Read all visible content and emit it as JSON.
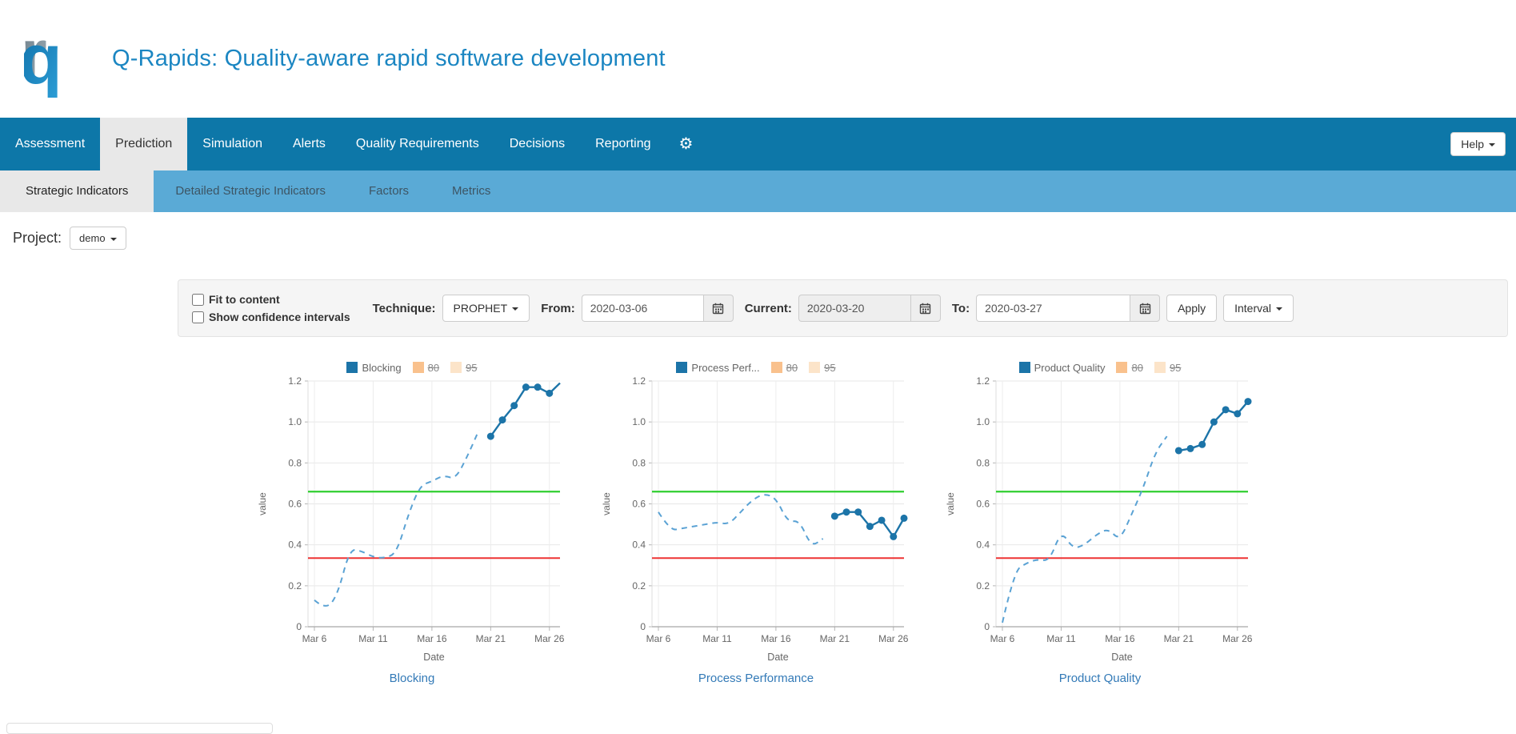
{
  "header": {
    "title": "Q-Rapids: Quality-aware rapid software development"
  },
  "navbar": {
    "items": [
      {
        "label": "Assessment",
        "active": false
      },
      {
        "label": "Prediction",
        "active": true
      },
      {
        "label": "Simulation",
        "active": false
      },
      {
        "label": "Alerts",
        "active": false
      },
      {
        "label": "Quality Requirements",
        "active": false
      },
      {
        "label": "Decisions",
        "active": false
      },
      {
        "label": "Reporting",
        "active": false
      }
    ],
    "gear_icon": "⚙",
    "help_label": "Help"
  },
  "subnav": {
    "items": [
      {
        "label": "Strategic Indicators",
        "active": true
      },
      {
        "label": "Detailed Strategic Indicators",
        "active": false
      },
      {
        "label": "Factors",
        "active": false
      },
      {
        "label": "Metrics",
        "active": false
      }
    ]
  },
  "project": {
    "label": "Project:",
    "selected": "demo"
  },
  "controls": {
    "fit_to_content": "Fit to content",
    "show_confidence": "Show confidence intervals",
    "technique_label": "Technique:",
    "technique_value": "PROPHET",
    "from_label": "From:",
    "from_value": "2020-03-06",
    "current_label": "Current:",
    "current_value": "2020-03-20",
    "to_label": "To:",
    "to_value": "2020-03-27",
    "apply_label": "Apply",
    "interval_label": "Interval"
  },
  "colors": {
    "navbar": "#0d77a8",
    "subnav": "#5aaad6",
    "active_tab": "#e8e8e8",
    "title_blue": "#1b86c2",
    "link_blue": "#337ab7",
    "series_solid": "#1c74a8",
    "series_dashed": "#5aa2d4",
    "band80": "#f9c18d",
    "band95": "#fce4c9",
    "threshold_upper_green": "#3ad13a",
    "threshold_lower_red": "#ee3333"
  },
  "chart_data": [
    {
      "type": "line",
      "title": "Blocking",
      "legend": [
        {
          "label": "Blocking",
          "color": "#1c74a8",
          "struck": false
        },
        {
          "label": "80",
          "color": "#f9c18d",
          "struck": true
        },
        {
          "label": "95",
          "color": "#fce4c9",
          "struck": true
        }
      ],
      "xlabel": "Date",
      "ylabel": "value",
      "ylim": [
        0,
        1.2
      ],
      "yticks": [
        0,
        0.2,
        0.4,
        0.6,
        0.8,
        1.0,
        1.2
      ],
      "xticks": [
        {
          "day": 0,
          "label": "Mar 6"
        },
        {
          "day": 5,
          "label": "Mar 11"
        },
        {
          "day": 10,
          "label": "Mar 16"
        },
        {
          "day": 15,
          "label": "Mar 21"
        },
        {
          "day": 20,
          "label": "Mar 26"
        }
      ],
      "x_range_days": [
        0,
        21
      ],
      "thresholds": {
        "upper": 0.66,
        "lower": 0.335
      },
      "series": [
        {
          "name": "historical",
          "style": "dashed",
          "color": "#5aa2d4",
          "dates": [
            "Mar 6",
            "Mar 7",
            "Mar 8",
            "Mar 9",
            "Mar 10",
            "Mar 11",
            "Mar 12",
            "Mar 13",
            "Mar 14",
            "Mar 15",
            "Mar 16",
            "Mar 17",
            "Mar 18",
            "Mar 19",
            "Mar 20"
          ],
          "days": [
            0,
            1,
            2,
            3,
            4,
            5,
            6,
            7,
            8,
            9,
            10,
            11,
            12,
            13,
            14
          ],
          "values": [
            0.13,
            0.08,
            0.16,
            0.38,
            0.37,
            0.34,
            0.335,
            0.36,
            0.55,
            0.69,
            0.71,
            0.74,
            0.72,
            0.83,
            0.96
          ]
        },
        {
          "name": "forecast",
          "style": "solid-dots",
          "color": "#1c74a8",
          "end_dot": false,
          "dates": [
            "Mar 21",
            "Mar 22",
            "Mar 23",
            "Mar 24",
            "Mar 25",
            "Mar 26",
            "Mar 27"
          ],
          "days": [
            15,
            16,
            17,
            18,
            19,
            20,
            21
          ],
          "values": [
            0.93,
            1.01,
            1.08,
            1.17,
            1.17,
            1.14,
            1.19
          ]
        }
      ]
    },
    {
      "type": "line",
      "title": "Process Performance",
      "legend": [
        {
          "label": "Process Perf...",
          "color": "#1c74a8",
          "struck": false
        },
        {
          "label": "80",
          "color": "#f9c18d",
          "struck": true
        },
        {
          "label": "95",
          "color": "#fce4c9",
          "struck": true
        }
      ],
      "xlabel": "Date",
      "ylabel": "value",
      "ylim": [
        0,
        1.2
      ],
      "yticks": [
        0,
        0.2,
        0.4,
        0.6,
        0.8,
        1.0,
        1.2
      ],
      "xticks": [
        {
          "day": 0,
          "label": "Mar 6"
        },
        {
          "day": 5,
          "label": "Mar 11"
        },
        {
          "day": 10,
          "label": "Mar 16"
        },
        {
          "day": 15,
          "label": "Mar 21"
        },
        {
          "day": 20,
          "label": "Mar 26"
        }
      ],
      "x_range_days": [
        0,
        21
      ],
      "thresholds": {
        "upper": 0.66,
        "lower": 0.335
      },
      "series": [
        {
          "name": "historical",
          "style": "dashed",
          "color": "#5aa2d4",
          "dates": [
            "Mar 6",
            "Mar 7",
            "Mar 8",
            "Mar 9",
            "Mar 10",
            "Mar 11",
            "Mar 12",
            "Mar 13",
            "Mar 14",
            "Mar 15",
            "Mar 16",
            "Mar 17",
            "Mar 18",
            "Mar 19",
            "Mar 20"
          ],
          "days": [
            0,
            1,
            2,
            3,
            4,
            5,
            6,
            7,
            8,
            9,
            10,
            11,
            12,
            13,
            14
          ],
          "values": [
            0.56,
            0.47,
            0.48,
            0.49,
            0.5,
            0.51,
            0.5,
            0.56,
            0.62,
            0.65,
            0.63,
            0.51,
            0.52,
            0.39,
            0.43
          ]
        },
        {
          "name": "forecast",
          "style": "solid-dots",
          "color": "#1c74a8",
          "end_dot": true,
          "dates": [
            "Mar 21",
            "Mar 22",
            "Mar 23",
            "Mar 24",
            "Mar 25",
            "Mar 26",
            "Mar 27"
          ],
          "days": [
            15,
            16,
            17,
            18,
            19,
            20,
            21
          ],
          "values": [
            0.54,
            0.56,
            0.56,
            0.49,
            0.52,
            0.44,
            0.53
          ]
        }
      ]
    },
    {
      "type": "line",
      "title": "Product Quality",
      "legend": [
        {
          "label": "Product Quality",
          "color": "#1c74a8",
          "struck": false
        },
        {
          "label": "80",
          "color": "#f9c18d",
          "struck": true
        },
        {
          "label": "95",
          "color": "#fce4c9",
          "struck": true
        }
      ],
      "xlabel": "Date",
      "ylabel": "value",
      "ylim": [
        0,
        1.2
      ],
      "yticks": [
        0,
        0.2,
        0.4,
        0.6,
        0.8,
        1.0,
        1.2
      ],
      "xticks": [
        {
          "day": 0,
          "label": "Mar 6"
        },
        {
          "day": 5,
          "label": "Mar 11"
        },
        {
          "day": 10,
          "label": "Mar 16"
        },
        {
          "day": 15,
          "label": "Mar 21"
        },
        {
          "day": 20,
          "label": "Mar 26"
        }
      ],
      "x_range_days": [
        0,
        21
      ],
      "thresholds": {
        "upper": 0.66,
        "lower": 0.335
      },
      "series": [
        {
          "name": "historical",
          "style": "dashed",
          "color": "#5aa2d4",
          "dates": [
            "Mar 6",
            "Mar 7",
            "Mar 8",
            "Mar 9",
            "Mar 10",
            "Mar 11",
            "Mar 12",
            "Mar 13",
            "Mar 14",
            "Mar 15",
            "Mar 16",
            "Mar 17",
            "Mar 18",
            "Mar 19",
            "Mar 20"
          ],
          "days": [
            0,
            1,
            2,
            3,
            4,
            5,
            6,
            7,
            8,
            9,
            10,
            11,
            12,
            13,
            14
          ],
          "values": [
            0.02,
            0.27,
            0.31,
            0.33,
            0.32,
            0.47,
            0.38,
            0.4,
            0.45,
            0.48,
            0.42,
            0.55,
            0.68,
            0.85,
            0.93
          ]
        },
        {
          "name": "forecast",
          "style": "solid-dots",
          "color": "#1c74a8",
          "end_dot": true,
          "dates": [
            "Mar 21",
            "Mar 22",
            "Mar 23",
            "Mar 24",
            "Mar 25",
            "Mar 26",
            "Mar 27"
          ],
          "days": [
            15,
            16,
            17,
            18,
            19,
            20,
            21
          ],
          "values": [
            0.86,
            0.87,
            0.89,
            1.0,
            1.06,
            1.04,
            1.1
          ]
        }
      ]
    }
  ]
}
